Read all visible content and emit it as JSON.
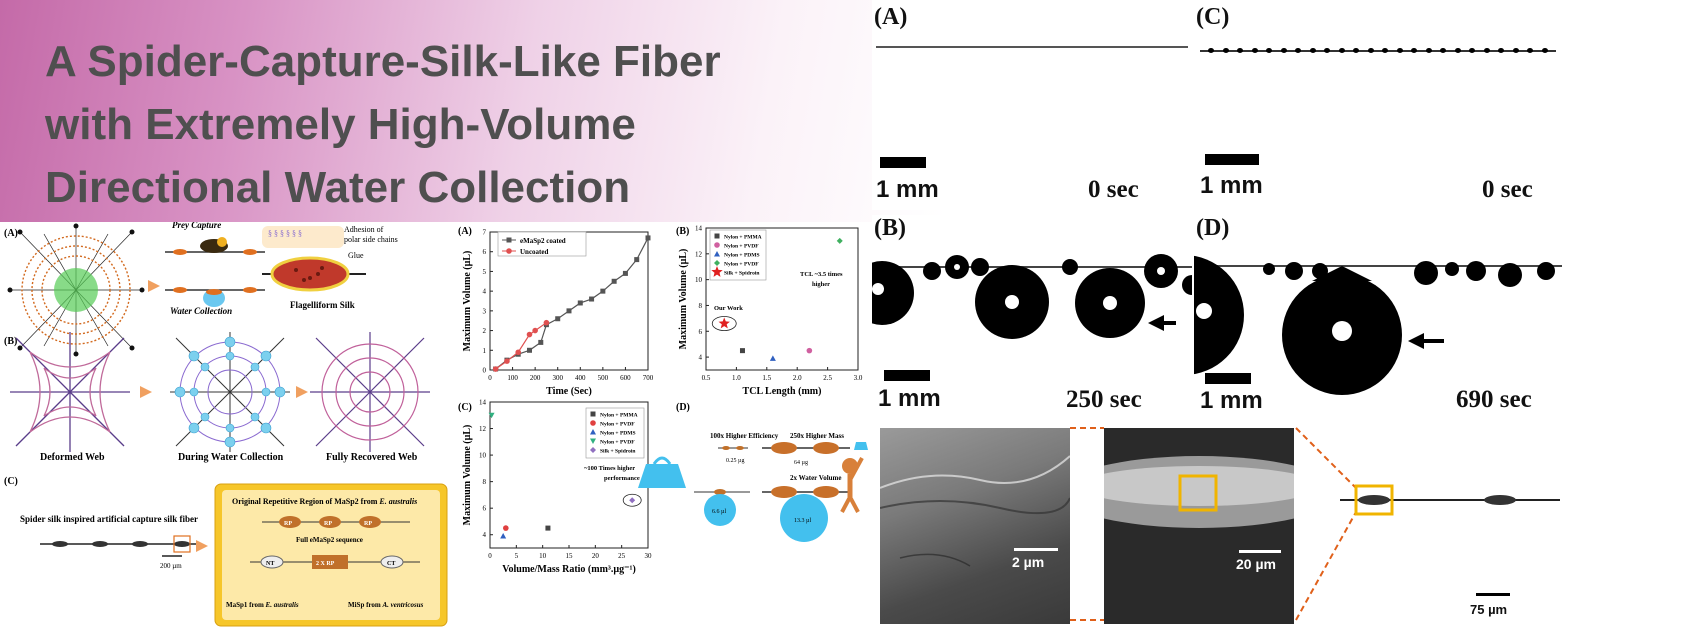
{
  "title_lines": [
    "A Spider-Capture-Silk-Like Fiber",
    "with Extremely High-Volume",
    "Directional Water Collection"
  ],
  "left_fig": {
    "label_a": "(A)",
    "label_b": "(B)",
    "label_c": "(C)",
    "prey_capture": "Prey Capture",
    "water_collection": "Water Collection",
    "adhesion": "Adhesion of",
    "adhesion2": "polar side chains",
    "glue": "Glue",
    "flagelliform": "Flagelliform Silk",
    "deformed": "Deformed Web",
    "during": "During Water Collection",
    "recovered": "Fully Recovered Web",
    "c_caption": "Spider silk inspired artificial capture silk fiber",
    "c_scale": "200 µm",
    "box_title1": "Original Repetitive Region of MaSp2 from",
    "box_title_species": "E. australis",
    "rp": "RP",
    "full_seq": "Full eMaSp2 sequence",
    "nt": "NT",
    "ct": "CT",
    "rp2": "2 X RP",
    "masp1": "MaSp1 from",
    "masp1_sp": "E. australis",
    "misp": "MiSp from",
    "misp_sp": "A. ventricosus"
  },
  "chart_a": {
    "label": "(A)",
    "xlabel": "Time (Sec)",
    "ylabel": "Maximum Volume (µL)",
    "xticks": [
      "0",
      "100",
      "200",
      "300",
      "400",
      "500",
      "600",
      "700"
    ],
    "yticks": [
      "0",
      "1",
      "2",
      "3",
      "4",
      "5",
      "6",
      "7"
    ],
    "legend": [
      "eMaSp2 coated",
      "Uncoated"
    ]
  },
  "chart_b": {
    "label": "(B)",
    "xlabel": "TCL Length (mm)",
    "ylabel": "Maximum Volume (µL)",
    "xticks": [
      "0.5",
      "1.0",
      "1.5",
      "2.0",
      "2.5",
      "3.0"
    ],
    "yticks": [
      "4",
      "6",
      "8",
      "10",
      "12",
      "14"
    ],
    "legend": [
      "Nylon + PMMA",
      "Nylon + PVDF",
      "Nylon + PDMS",
      "Nylon + PVDF",
      "Silk + Spidroin"
    ],
    "annot1": "TCL ~3.5 times",
    "annot2": "higher",
    "our_work": "Our Work"
  },
  "chart_c": {
    "label": "(C)",
    "xlabel": "Volume/Mass Ratio (mm³.µg⁻¹)",
    "ylabel": "Maximum Volume (µL)",
    "xticks": [
      "0",
      "5",
      "10",
      "15",
      "20",
      "25",
      "30"
    ],
    "yticks": [
      "4",
      "6",
      "8",
      "10",
      "12",
      "14"
    ],
    "legend": [
      "Nylon + PMMA",
      "Nylon + PVDF",
      "Nylon + PDMS",
      "Nylon + PVDF",
      "Silk + Spidroin"
    ],
    "annot1": "~100 Times higher",
    "annot2": "performance"
  },
  "chart_d": {
    "label": "(D)",
    "eff": "100x Higher Efficiency",
    "mass": "250x Higher Mass",
    "m1": "0.25 µg",
    "m2": "64 µg",
    "vol": "2x Water Volume",
    "v1": "6.6 µl",
    "v2": "13.3 µl"
  },
  "photos": {
    "a": "(A)",
    "b": "(B)",
    "c": "(C)",
    "d": "(D)",
    "scale": "1 mm",
    "t0": "0 sec",
    "t250": "250 sec",
    "t690": "690 sec",
    "sem1": "2 µm",
    "sem2": "20 µm",
    "sem3": "75 µm"
  },
  "chart_data": [
    {
      "type": "line",
      "title": "",
      "xlabel": "Time (Sec)",
      "ylabel": "Maximum Volume (µL)",
      "xlim": [
        0,
        700
      ],
      "ylim": [
        0,
        7
      ],
      "series": [
        {
          "name": "eMaSp2 coated",
          "x": [
            25,
            75,
            125,
            175,
            225,
            250,
            300,
            350,
            400,
            450,
            500,
            550,
            600,
            650,
            700
          ],
          "y": [
            0.05,
            0.5,
            0.8,
            1.0,
            1.4,
            2.3,
            2.6,
            3.0,
            3.4,
            3.6,
            4.0,
            4.5,
            4.9,
            5.6,
            6.7
          ]
        },
        {
          "name": "Uncoated",
          "x": [
            25,
            75,
            125,
            175,
            200,
            250
          ],
          "y": [
            0.05,
            0.45,
            0.9,
            1.8,
            2.0,
            2.4
          ]
        }
      ]
    },
    {
      "type": "scatter",
      "title": "",
      "xlabel": "TCL Length (mm)",
      "ylabel": "Maximum Volume (µL)",
      "xlim": [
        0.5,
        3.0
      ],
      "ylim": [
        3,
        14
      ],
      "series": [
        {
          "name": "Nylon + PMMA",
          "x": [
            1.1
          ],
          "y": [
            4.5
          ]
        },
        {
          "name": "Nylon + PVDF",
          "x": [
            2.2
          ],
          "y": [
            4.5
          ]
        },
        {
          "name": "Nylon + PDMS",
          "x": [
            1.6
          ],
          "y": [
            3.9
          ]
        },
        {
          "name": "Nylon + PVDF",
          "x": [
            2.7
          ],
          "y": [
            13.0
          ]
        },
        {
          "name": "Silk + Spidroin",
          "x": [
            0.8
          ],
          "y": [
            6.6
          ]
        }
      ]
    },
    {
      "type": "scatter",
      "title": "",
      "xlabel": "Volume/Mass Ratio (mm³.µg⁻¹)",
      "ylabel": "Maximum Volume (µL)",
      "xlim": [
        0,
        30
      ],
      "ylim": [
        3,
        14
      ],
      "series": [
        {
          "name": "Nylon + PMMA",
          "x": [
            11
          ],
          "y": [
            4.5
          ]
        },
        {
          "name": "Nylon + PVDF",
          "x": [
            3
          ],
          "y": [
            4.5
          ]
        },
        {
          "name": "Nylon + PDMS",
          "x": [
            2.5
          ],
          "y": [
            3.9
          ]
        },
        {
          "name": "Nylon + PVDF",
          "x": [
            0.3
          ],
          "y": [
            13.0
          ]
        },
        {
          "name": "Silk + Spidroin",
          "x": [
            27
          ],
          "y": [
            6.6
          ]
        }
      ]
    }
  ]
}
